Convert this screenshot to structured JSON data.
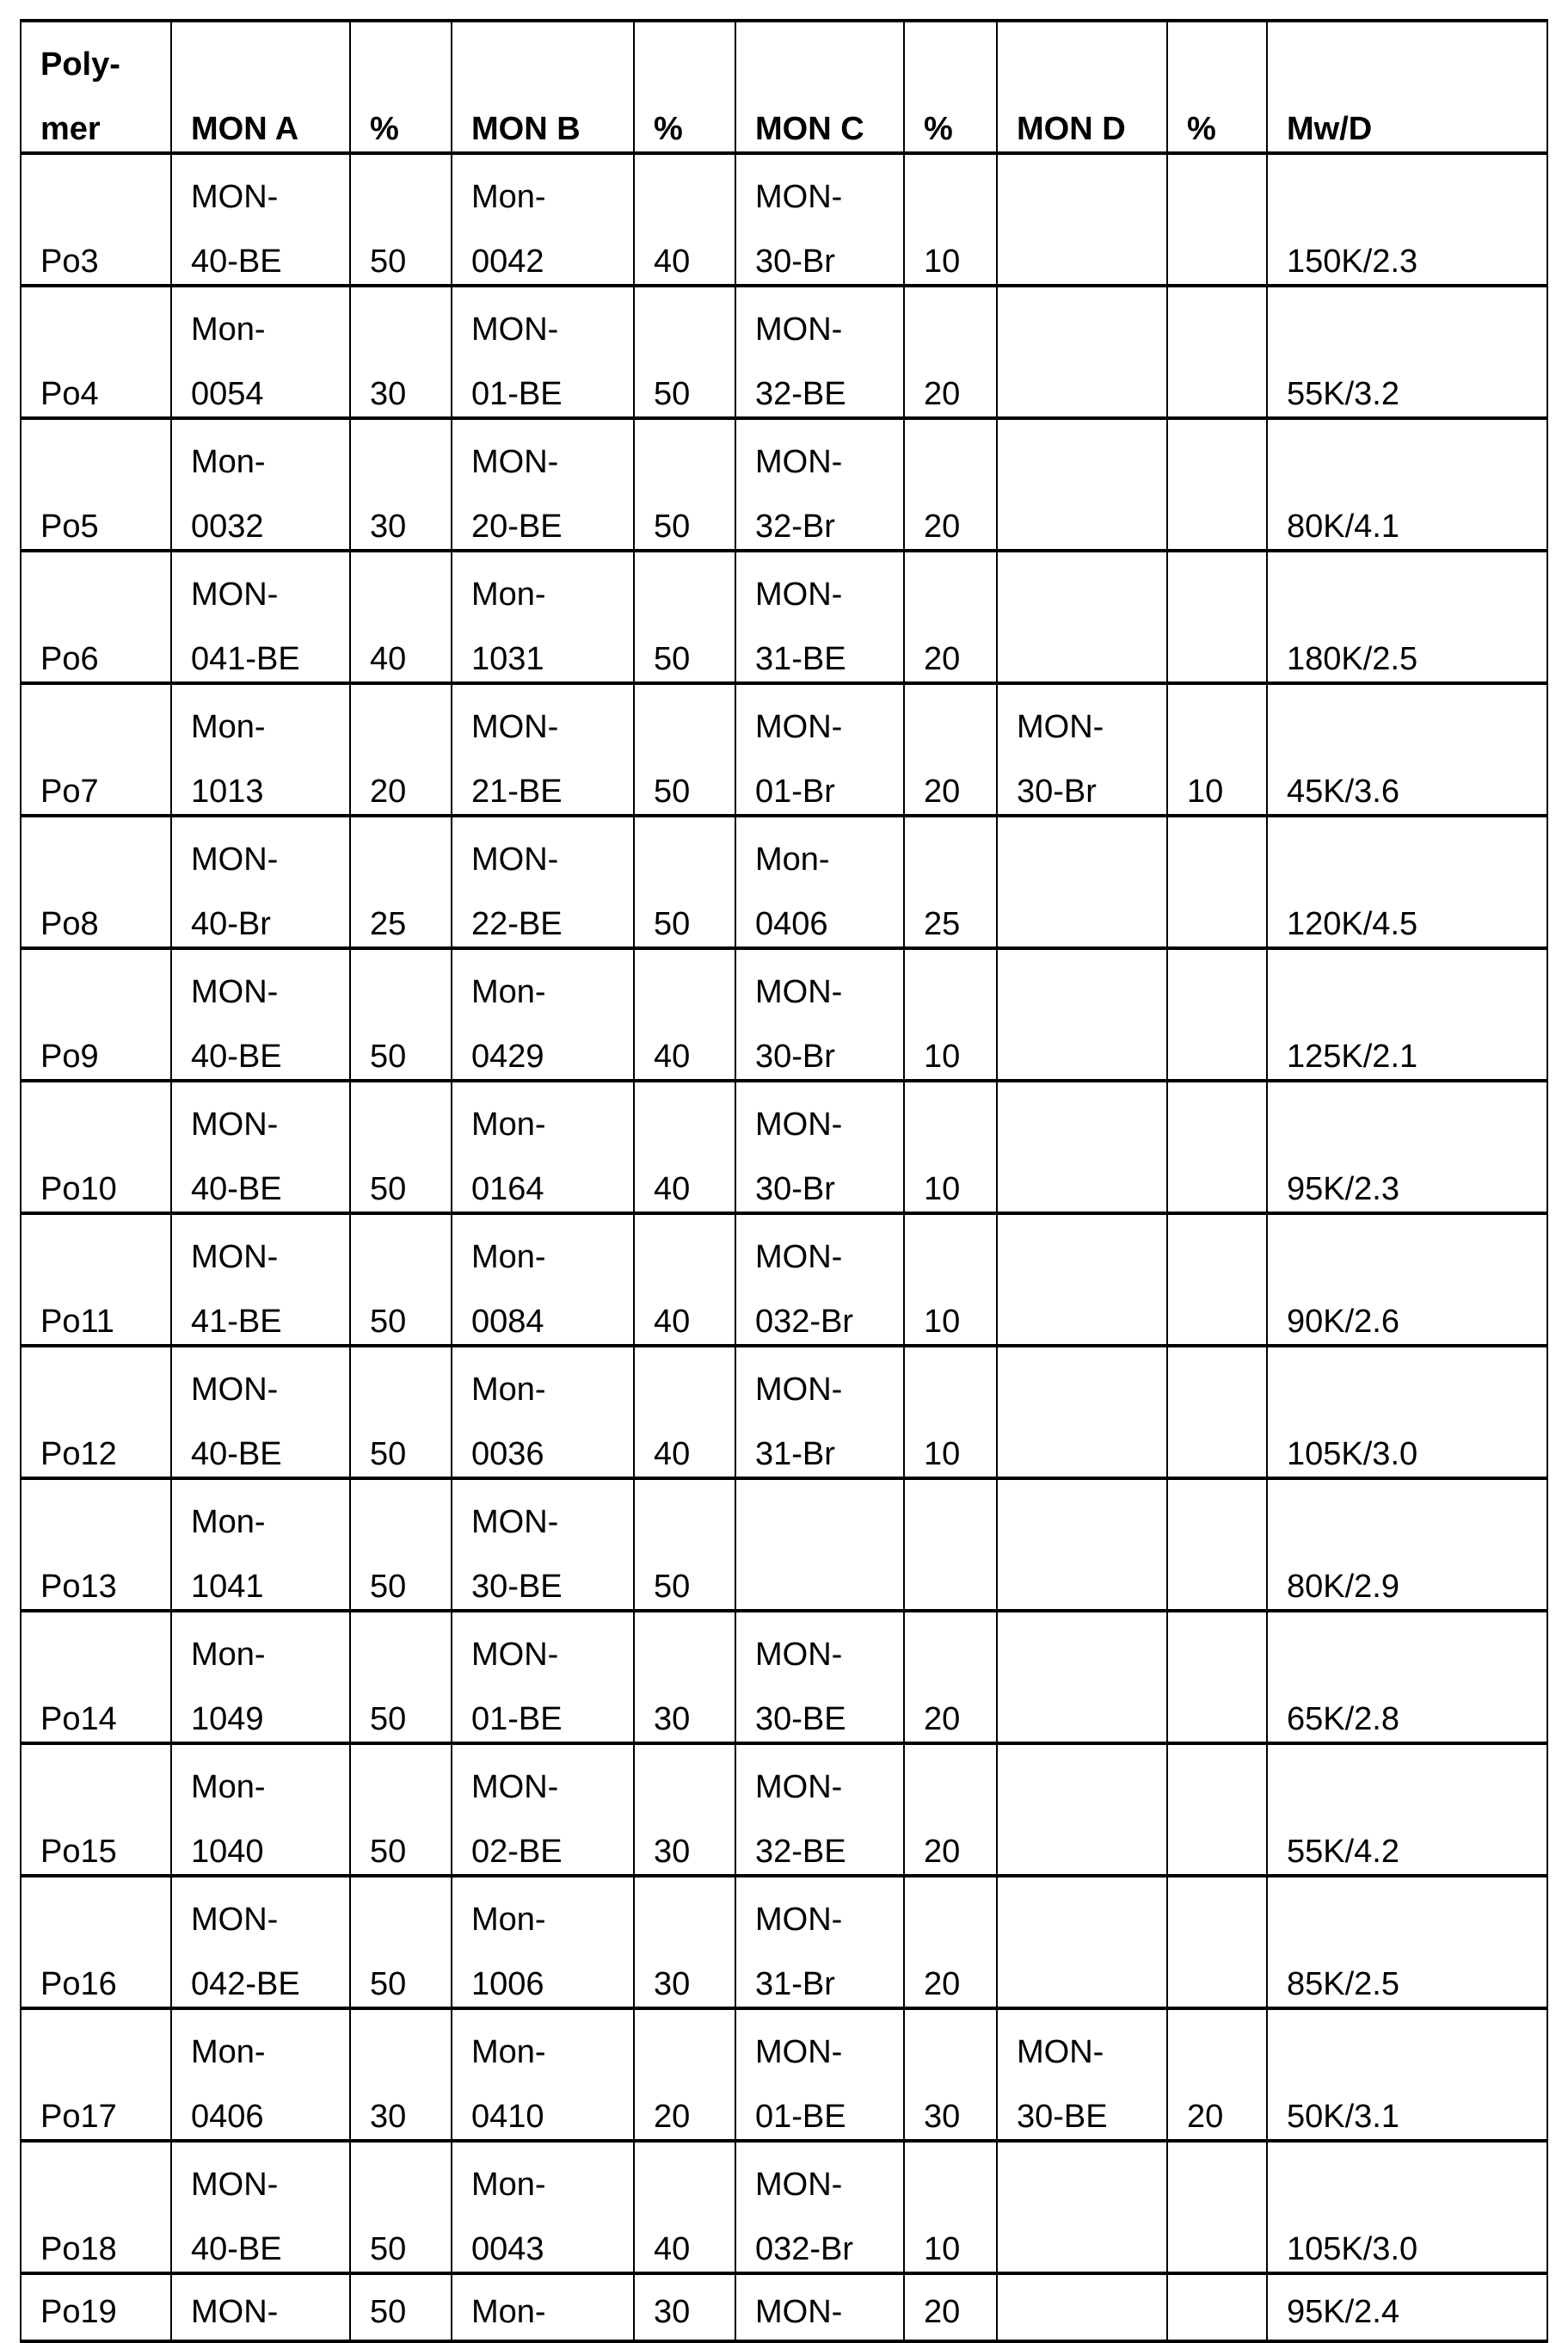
{
  "table": {
    "headers": [
      [
        "Poly-",
        "mer"
      ],
      [
        "MON A"
      ],
      [
        "%"
      ],
      [
        "MON B"
      ],
      [
        "%"
      ],
      [
        "MON C"
      ],
      [
        "%"
      ],
      [
        "MON D"
      ],
      [
        "%"
      ],
      [
        "Mw/D"
      ]
    ],
    "rows": [
      [
        [
          "Po3"
        ],
        [
          "MON-",
          "40-BE"
        ],
        [
          "50"
        ],
        [
          "Mon-",
          "0042"
        ],
        [
          "40"
        ],
        [
          "MON-",
          "30-Br"
        ],
        [
          "10"
        ],
        [],
        [],
        [
          "150K/2.3"
        ]
      ],
      [
        [
          "Po4"
        ],
        [
          "Mon-",
          "0054"
        ],
        [
          "30"
        ],
        [
          "MON-",
          "01-BE"
        ],
        [
          "50"
        ],
        [
          "MON-",
          "32-BE"
        ],
        [
          "20"
        ],
        [],
        [],
        [
          "55K/3.2"
        ]
      ],
      [
        [
          "Po5"
        ],
        [
          "Mon-",
          "0032"
        ],
        [
          "30"
        ],
        [
          "MON-",
          "20-BE"
        ],
        [
          "50"
        ],
        [
          "MON-",
          "32-Br"
        ],
        [
          "20"
        ],
        [],
        [],
        [
          "80K/4.1"
        ]
      ],
      [
        [
          "Po6"
        ],
        [
          "MON-",
          "041-BE"
        ],
        [
          "40"
        ],
        [
          "Mon-",
          "1031"
        ],
        [
          "50"
        ],
        [
          "MON-",
          "31-BE"
        ],
        [
          "20"
        ],
        [],
        [],
        [
          "180K/2.5"
        ]
      ],
      [
        [
          "Po7"
        ],
        [
          "Mon-",
          "1013"
        ],
        [
          "20"
        ],
        [
          "MON-",
          "21-BE"
        ],
        [
          "50"
        ],
        [
          "MON-",
          "01-Br"
        ],
        [
          "20"
        ],
        [
          "MON-",
          "30-Br"
        ],
        [
          "10"
        ],
        [
          "45K/3.6"
        ]
      ],
      [
        [
          "Po8"
        ],
        [
          "MON-",
          "40-Br"
        ],
        [
          "25"
        ],
        [
          "MON-",
          "22-BE"
        ],
        [
          "50"
        ],
        [
          "Mon-",
          "0406"
        ],
        [
          "25"
        ],
        [],
        [],
        [
          "120K/4.5"
        ]
      ],
      [
        [
          "Po9"
        ],
        [
          "MON-",
          "40-BE"
        ],
        [
          "50"
        ],
        [
          "Mon-",
          "0429"
        ],
        [
          "40"
        ],
        [
          "MON-",
          "30-Br"
        ],
        [
          "10"
        ],
        [],
        [],
        [
          "125K/2.1"
        ]
      ],
      [
        [
          "Po10"
        ],
        [
          "MON-",
          "40-BE"
        ],
        [
          "50"
        ],
        [
          "Mon-",
          "0164"
        ],
        [
          "40"
        ],
        [
          "MON-",
          "30-Br"
        ],
        [
          "10"
        ],
        [],
        [],
        [
          "95K/2.3"
        ]
      ],
      [
        [
          "Po11"
        ],
        [
          "MON-",
          "41-BE"
        ],
        [
          "50"
        ],
        [
          "Mon-",
          "0084"
        ],
        [
          "40"
        ],
        [
          "MON-",
          "032-Br"
        ],
        [
          "10"
        ],
        [],
        [],
        [
          "90K/2.6"
        ]
      ],
      [
        [
          "Po12"
        ],
        [
          "MON-",
          "40-BE"
        ],
        [
          "50"
        ],
        [
          "Mon-",
          "0036"
        ],
        [
          "40"
        ],
        [
          "MON-",
          "31-Br"
        ],
        [
          "10"
        ],
        [],
        [],
        [
          "105K/3.0"
        ]
      ],
      [
        [
          "Po13"
        ],
        [
          "Mon-",
          "1041"
        ],
        [
          "50"
        ],
        [
          "MON-",
          "30-BE"
        ],
        [
          "50"
        ],
        [],
        [],
        [],
        [],
        [
          "80K/2.9"
        ]
      ],
      [
        [
          "Po14"
        ],
        [
          "Mon-",
          "1049"
        ],
        [
          "50"
        ],
        [
          "MON-",
          "01-BE"
        ],
        [
          "30"
        ],
        [
          "MON-",
          "30-BE"
        ],
        [
          "20"
        ],
        [],
        [],
        [
          "65K/2.8"
        ]
      ],
      [
        [
          "Po15"
        ],
        [
          "Mon-",
          "1040"
        ],
        [
          "50"
        ],
        [
          "MON-",
          "02-BE"
        ],
        [
          "30"
        ],
        [
          "MON-",
          "32-BE"
        ],
        [
          "20"
        ],
        [],
        [],
        [
          "55K/4.2"
        ]
      ],
      [
        [
          "Po16"
        ],
        [
          "MON-",
          "042-BE"
        ],
        [
          "50"
        ],
        [
          "Mon-",
          "1006"
        ],
        [
          "30"
        ],
        [
          "MON-",
          "31-Br"
        ],
        [
          "20"
        ],
        [],
        [],
        [
          "85K/2.5"
        ]
      ],
      [
        [
          "Po17"
        ],
        [
          "Mon-",
          "0406"
        ],
        [
          "30"
        ],
        [
          "Mon-",
          "0410"
        ],
        [
          "20"
        ],
        [
          "MON-",
          "01-BE"
        ],
        [
          "30"
        ],
        [
          "MON-",
          "30-BE"
        ],
        [
          "20"
        ],
        [
          "50K/3.1"
        ]
      ],
      [
        [
          "Po18"
        ],
        [
          "MON-",
          "40-BE"
        ],
        [
          "50"
        ],
        [
          "Mon-",
          "0043"
        ],
        [
          "40"
        ],
        [
          "MON-",
          "032-Br"
        ],
        [
          "10"
        ],
        [],
        [],
        [
          "105K/3.0"
        ]
      ],
      [
        [
          "Po19"
        ],
        [
          "MON-"
        ],
        [
          "50"
        ],
        [
          "Mon-"
        ],
        [
          "30"
        ],
        [
          "MON-"
        ],
        [
          "20"
        ],
        [],
        [],
        [
          "95K/2.4"
        ]
      ]
    ]
  }
}
